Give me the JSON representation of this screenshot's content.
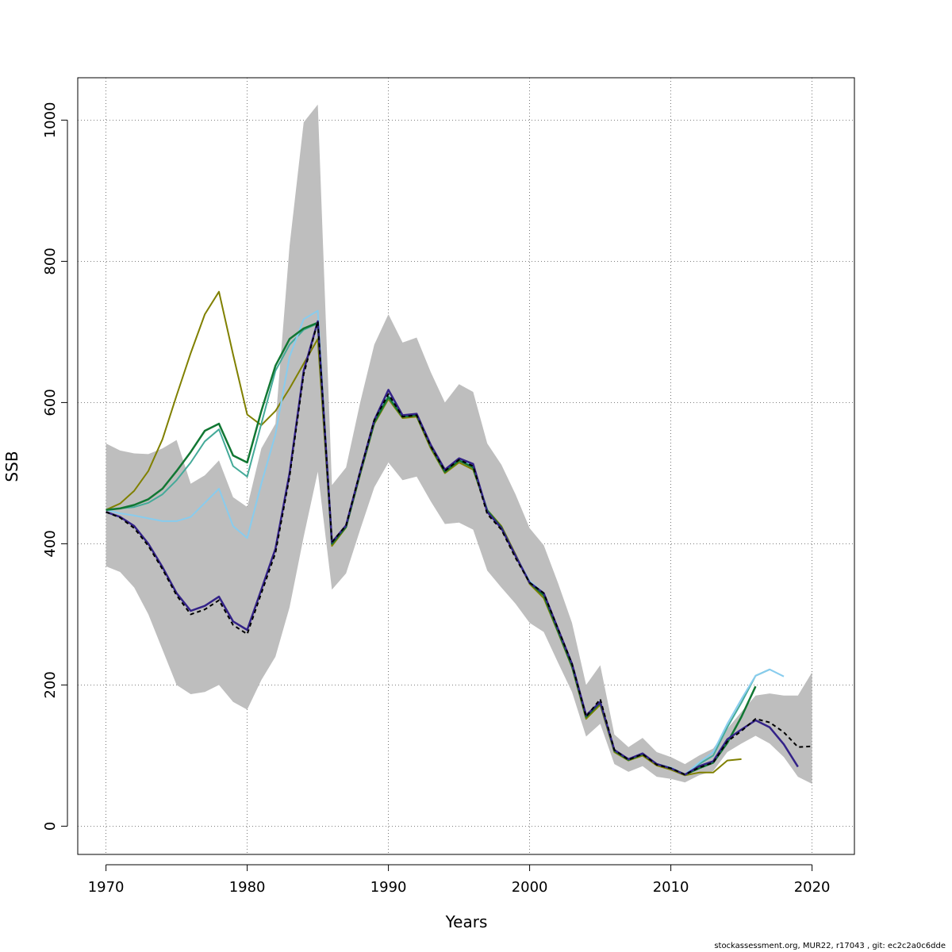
{
  "footer_text": "stockassessment.org, MUR22, r17043 , git: ec2c2a0c6dde",
  "chart_data": {
    "type": "line",
    "xlabel": "Years",
    "ylabel": "SSB",
    "xlim": [
      1968,
      2023
    ],
    "ylim": [
      -40,
      1060
    ],
    "x_ticks": [
      1970,
      1980,
      1990,
      2000,
      2010,
      2020
    ],
    "y_ticks": [
      0,
      200,
      400,
      600,
      800,
      1000
    ],
    "grid": true,
    "confidence_band": {
      "x": [
        1970,
        1971,
        1972,
        1973,
        1974,
        1975,
        1976,
        1977,
        1978,
        1979,
        1980,
        1981,
        1982,
        1983,
        1984,
        1985,
        1986,
        1987,
        1988,
        1989,
        1990,
        1991,
        1992,
        1993,
        1994,
        1995,
        1996,
        1997,
        1998,
        1999,
        2000,
        2001,
        2002,
        2003,
        2004,
        2005,
        2006,
        2007,
        2008,
        2009,
        2010,
        2011,
        2012,
        2013,
        2014,
        2015,
        2016,
        2017,
        2018,
        2019,
        2020
      ],
      "lower": [
        368,
        360,
        338,
        300,
        250,
        200,
        187,
        190,
        200,
        176,
        165,
        207,
        240,
        310,
        410,
        502,
        335,
        358,
        420,
        480,
        515,
        490,
        495,
        460,
        428,
        430,
        420,
        362,
        338,
        315,
        288,
        275,
        232,
        190,
        127,
        145,
        88,
        77,
        85,
        70,
        67,
        62,
        72,
        78,
        105,
        117,
        128,
        117,
        98,
        70,
        60
      ],
      "upper": [
        542,
        532,
        528,
        527,
        535,
        547,
        485,
        497,
        518,
        466,
        452,
        535,
        570,
        822,
        997,
        1022,
        483,
        508,
        600,
        682,
        725,
        685,
        692,
        643,
        600,
        626,
        615,
        542,
        512,
        470,
        422,
        398,
        345,
        288,
        200,
        228,
        130,
        112,
        125,
        105,
        98,
        88,
        100,
        110,
        138,
        162,
        185,
        188,
        185,
        185,
        218
      ],
      "color": "#bebebe"
    },
    "series": [
      {
        "color": "#808000",
        "dashed": false,
        "width": 2,
        "x": [
          1970,
          1971,
          1972,
          1973,
          1974,
          1975,
          1976,
          1977,
          1978,
          1979,
          1980,
          1981,
          1982,
          1983,
          1984,
          1985,
          1986,
          1987,
          1988,
          1989,
          1990,
          1991,
          1992,
          1993,
          1994,
          1995,
          1996,
          1997,
          1998,
          1999,
          2000,
          2001,
          2002,
          2003,
          2004,
          2005,
          2006,
          2007,
          2008,
          2009,
          2010,
          2011,
          2012,
          2013,
          2014,
          2015
        ],
        "y": [
          448,
          457,
          475,
          503,
          548,
          610,
          670,
          725,
          757,
          668,
          583,
          568,
          588,
          620,
          655,
          690,
          397,
          423,
          498,
          570,
          605,
          578,
          580,
          535,
          500,
          515,
          505,
          448,
          425,
          385,
          343,
          323,
          275,
          225,
          152,
          172,
          105,
          93,
          100,
          86,
          80,
          72,
          76,
          76,
          93,
          95
        ]
      },
      {
        "color": "#44aa99",
        "dashed": false,
        "width": 2,
        "x": [
          1970,
          1971,
          1972,
          1973,
          1974,
          1975,
          1976,
          1977,
          1978,
          1979,
          1980,
          1981,
          1982,
          1983,
          1984,
          1985,
          1986,
          1987,
          1988,
          1989,
          1990,
          1991,
          1992,
          1993,
          1994,
          1995,
          1996,
          1997,
          1998,
          1999,
          2000,
          2001,
          2002,
          2003,
          2004,
          2005,
          2006,
          2007,
          2008,
          2009,
          2010,
          2011,
          2012,
          2013,
          2014,
          2015,
          2016,
          2017
        ],
        "y": [
          448,
          450,
          452,
          458,
          470,
          490,
          515,
          545,
          562,
          510,
          495,
          570,
          645,
          682,
          703,
          712,
          400,
          425,
          500,
          572,
          607,
          580,
          582,
          538,
          502,
          518,
          508,
          447,
          422,
          383,
          345,
          328,
          278,
          228,
          155,
          175,
          107,
          95,
          102,
          88,
          82,
          73,
          88,
          100,
          140,
          175,
          213,
          222
        ]
      },
      {
        "color": "#88ccee",
        "dashed": false,
        "width": 2,
        "x": [
          1970,
          1971,
          1972,
          1973,
          1974,
          1975,
          1976,
          1977,
          1978,
          1979,
          1980,
          1981,
          1982,
          1983,
          1984,
          1985,
          1986,
          1987,
          1988,
          1989,
          1990,
          1991,
          1992,
          1993,
          1994,
          1995,
          1996,
          1997,
          1998,
          1999,
          2000,
          2001,
          2002,
          2003,
          2004,
          2005,
          2006,
          2007,
          2008,
          2009,
          2010,
          2011,
          2012,
          2013,
          2014,
          2015,
          2016,
          2017,
          2018
        ],
        "y": [
          448,
          443,
          440,
          436,
          432,
          432,
          438,
          458,
          478,
          425,
          408,
          485,
          555,
          665,
          718,
          730,
          400,
          426,
          500,
          574,
          610,
          582,
          584,
          538,
          503,
          520,
          510,
          448,
          422,
          383,
          347,
          330,
          280,
          230,
          157,
          177,
          108,
          95,
          103,
          88,
          83,
          73,
          90,
          105,
          145,
          180,
          213,
          222,
          212
        ]
      },
      {
        "color": "#117733",
        "dashed": false,
        "width": 2.5,
        "x": [
          1970,
          1971,
          1972,
          1973,
          1974,
          1975,
          1976,
          1977,
          1978,
          1979,
          1980,
          1981,
          1982,
          1983,
          1984,
          1985,
          1986,
          1987,
          1988,
          1989,
          1990,
          1991,
          1992,
          1993,
          1994,
          1995,
          1996,
          1997,
          1998,
          1999,
          2000,
          2001,
          2002,
          2003,
          2004,
          2005,
          2006,
          2007,
          2008,
          2009,
          2010,
          2011,
          2012,
          2013,
          2014,
          2015,
          2016
        ],
        "y": [
          448,
          450,
          455,
          463,
          478,
          503,
          530,
          560,
          570,
          525,
          515,
          588,
          652,
          690,
          705,
          713,
          400,
          424,
          500,
          572,
          608,
          580,
          582,
          538,
          502,
          518,
          508,
          447,
          423,
          383,
          345,
          327,
          277,
          227,
          155,
          175,
          107,
          94,
          102,
          88,
          82,
          73,
          82,
          90,
          118,
          155,
          198
        ]
      },
      {
        "color": "#332288",
        "dashed": false,
        "width": 2.5,
        "x": [
          1970,
          1971,
          1972,
          1973,
          1974,
          1975,
          1976,
          1977,
          1978,
          1979,
          1980,
          1981,
          1982,
          1983,
          1984,
          1985,
          1986,
          1987,
          1988,
          1989,
          1990,
          1991,
          1992,
          1993,
          1994,
          1995,
          1996,
          1997,
          1998,
          1999,
          2000,
          2001,
          2002,
          2003,
          2004,
          2005,
          2006,
          2007,
          2008,
          2009,
          2010,
          2011,
          2012,
          2013,
          2014,
          2015,
          2016,
          2017,
          2018,
          2019
        ],
        "y": [
          445,
          438,
          425,
          400,
          367,
          330,
          305,
          312,
          325,
          290,
          278,
          335,
          393,
          500,
          645,
          715,
          402,
          426,
          502,
          575,
          618,
          582,
          584,
          540,
          505,
          521,
          513,
          445,
          422,
          383,
          345,
          330,
          280,
          230,
          157,
          176,
          108,
          95,
          103,
          88,
          82,
          73,
          85,
          92,
          123,
          137,
          150,
          140,
          116,
          84
        ]
      },
      {
        "color": "#000000",
        "dashed": true,
        "width": 2,
        "x": [
          1970,
          1971,
          1972,
          1973,
          1974,
          1975,
          1976,
          1977,
          1978,
          1979,
          1980,
          1981,
          1982,
          1983,
          1984,
          1985,
          1986,
          1987,
          1988,
          1989,
          1990,
          1991,
          1992,
          1993,
          1994,
          1995,
          1996,
          1997,
          1998,
          1999,
          2000,
          2001,
          2002,
          2003,
          2004,
          2005,
          2006,
          2007,
          2008,
          2009,
          2010,
          2011,
          2012,
          2013,
          2014,
          2015,
          2016,
          2017,
          2018,
          2019,
          2020
        ],
        "y": [
          445,
          437,
          422,
          397,
          364,
          327,
          300,
          307,
          320,
          285,
          272,
          330,
          387,
          495,
          640,
          715,
          402,
          426,
          502,
          575,
          612,
          580,
          582,
          538,
          503,
          519,
          510,
          442,
          420,
          380,
          345,
          330,
          280,
          230,
          155,
          180,
          108,
          94,
          102,
          87,
          82,
          73,
          83,
          90,
          120,
          135,
          152,
          147,
          133,
          112,
          113
        ]
      }
    ]
  }
}
